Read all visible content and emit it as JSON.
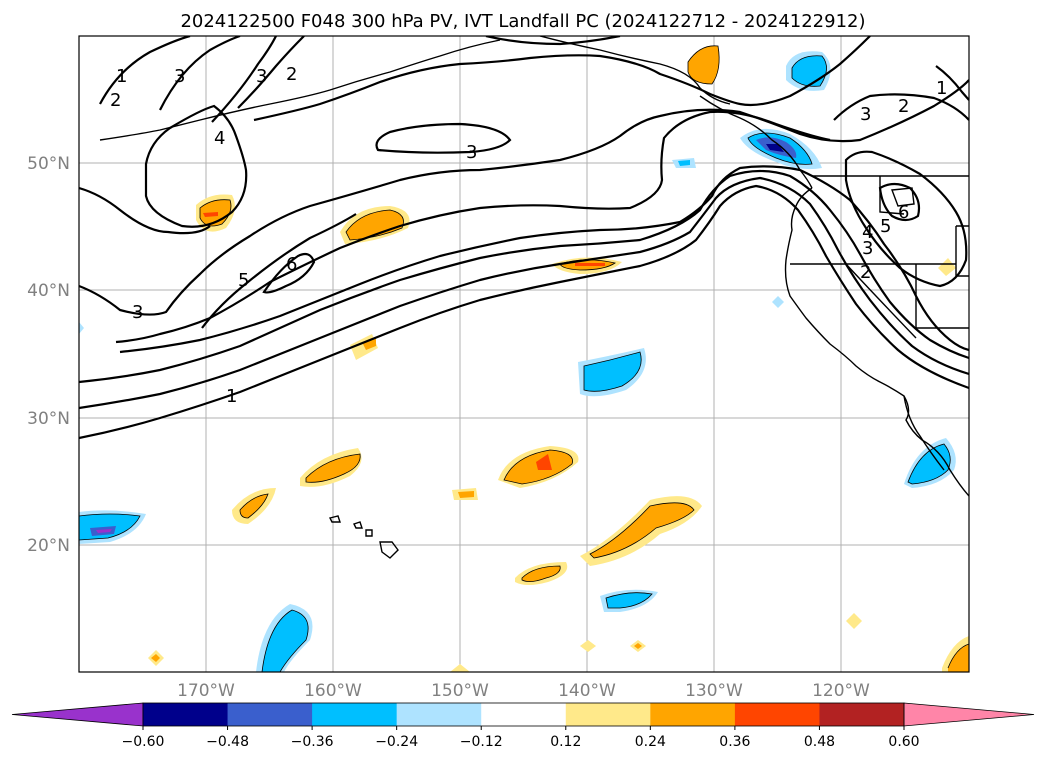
{
  "title": "2024122500 F048 300 hPa PV, IVT Landfall PC (2024122712 - 2024122912)",
  "lat_labels": [
    "50°N",
    "40°N",
    "30°N",
    "20°N"
  ],
  "lon_labels": [
    "170°W",
    "160°W",
    "150°W",
    "140°W",
    "130°W",
    "120°W"
  ],
  "contour_labels": [
    "1",
    "2",
    "3",
    "3",
    "2",
    "4",
    "3",
    "5",
    "6",
    "3",
    "1",
    "3",
    "2",
    "6",
    "5",
    "4",
    "3",
    "2",
    "1"
  ],
  "colorbar": {
    "ticks": [
      "−0.60",
      "−0.48",
      "−0.36",
      "−0.24",
      "−0.12",
      "0.12",
      "0.24",
      "0.36",
      "0.48",
      "0.60"
    ],
    "colors": [
      "#9932cc",
      "#00008b",
      "#3a5fcd",
      "#00bfff",
      "#aee3ff",
      "#ffffff",
      "#ffe98a",
      "#ffa500",
      "#ff4500",
      "#b22222",
      "#ff85a8"
    ],
    "levels": [
      -0.6,
      -0.48,
      -0.36,
      -0.24,
      -0.12,
      0.12,
      0.24,
      0.36,
      0.48,
      0.6
    ]
  }
}
